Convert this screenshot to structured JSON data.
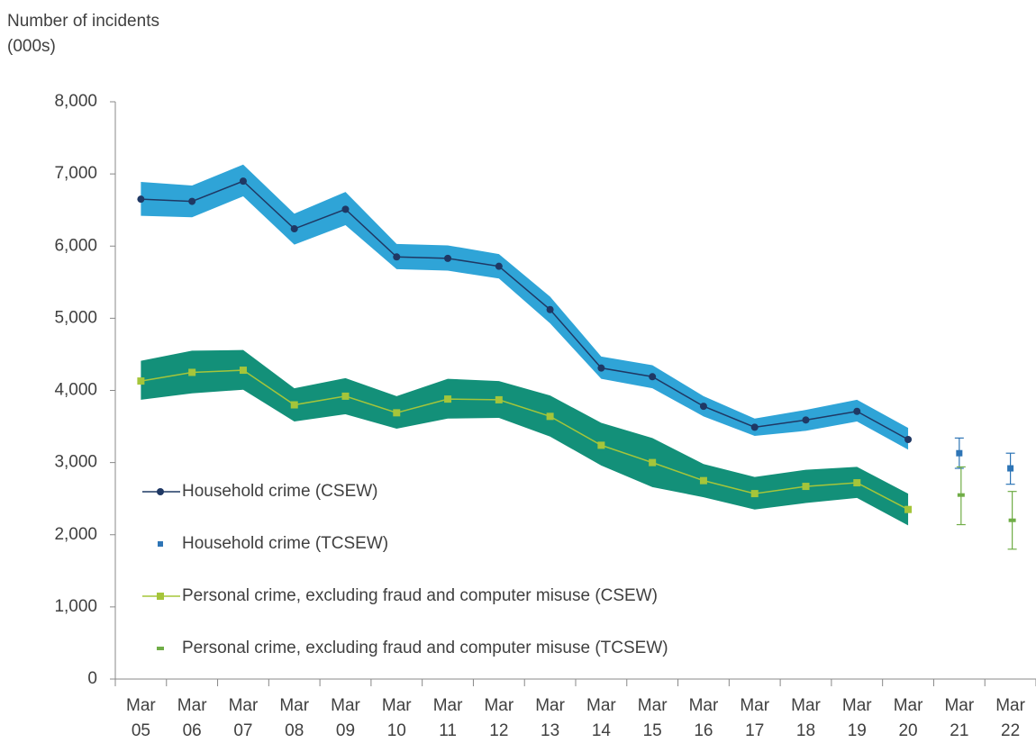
{
  "chart_data": {
    "type": "line",
    "y_label": "Number of incidents (000s)",
    "categories": [
      "Mar 05",
      "Mar 06",
      "Mar 07",
      "Mar 08",
      "Mar 09",
      "Mar 10",
      "Mar 11",
      "Mar 12",
      "Mar 13",
      "Mar 14",
      "Mar 15",
      "Mar 16",
      "Mar 17",
      "Mar 18",
      "Mar 19",
      "Mar 20",
      "Mar 21",
      "Mar 22"
    ],
    "ylim": [
      0,
      8000
    ],
    "yticks": [
      0,
      {
        "value": 1000,
        "label": "1,000"
      },
      {
        "value": 2000,
        "label": "2,000"
      },
      {
        "value": 3000,
        "label": "3,000"
      },
      {
        "value": 4000,
        "label": "4,000"
      },
      {
        "value": 5000,
        "label": "5,000"
      },
      {
        "value": 6000,
        "label": "6,000"
      },
      {
        "value": 7000,
        "label": "7,000"
      },
      {
        "value": 8000,
        "label": "8,000"
      }
    ],
    "grid": false,
    "legend": "left",
    "series": [
      {
        "name": "Household crime (CSEW)",
        "color": "#1f3864",
        "marker": "circle",
        "band_color": "#2fa4d7",
        "values": [
          6650,
          6620,
          6900,
          6240,
          6510,
          5850,
          5830,
          5720,
          5120,
          4310,
          4190,
          3780,
          3490,
          3590,
          3710,
          3320,
          null,
          null
        ],
        "upper": [
          6890,
          6840,
          7130,
          6450,
          6750,
          6030,
          6010,
          5890,
          5300,
          4470,
          4350,
          3920,
          3610,
          3730,
          3870,
          3480,
          null,
          null
        ],
        "lower": [
          6420,
          6400,
          6690,
          6020,
          6290,
          5680,
          5660,
          5550,
          4930,
          4160,
          4030,
          3640,
          3370,
          3440,
          3570,
          3180,
          null,
          null
        ]
      },
      {
        "name": "Household crime (TCSEW)",
        "color": "#2e75b6",
        "marker": "square",
        "values": [
          null,
          null,
          null,
          null,
          null,
          null,
          null,
          null,
          null,
          null,
          null,
          null,
          null,
          null,
          null,
          null,
          3130,
          2920
        ],
        "upper": [
          null,
          null,
          null,
          null,
          null,
          null,
          null,
          null,
          null,
          null,
          null,
          null,
          null,
          null,
          null,
          null,
          3340,
          3130
        ],
        "lower": [
          null,
          null,
          null,
          null,
          null,
          null,
          null,
          null,
          null,
          null,
          null,
          null,
          null,
          null,
          null,
          null,
          2920,
          2700
        ]
      },
      {
        "name": "Personal crime, excluding fraud and computer misuse (CSEW)",
        "color": "#a5c53a",
        "marker": "square",
        "band_color": "#139079",
        "values": [
          4130,
          4250,
          4280,
          3800,
          3920,
          3690,
          3880,
          3870,
          3640,
          3240,
          3000,
          2750,
          2570,
          2670,
          2720,
          2350,
          null,
          null
        ],
        "upper": [
          4410,
          4550,
          4560,
          4030,
          4170,
          3920,
          4160,
          4130,
          3930,
          3550,
          3340,
          2980,
          2800,
          2900,
          2940,
          2570,
          null,
          null
        ],
        "lower": [
          3870,
          3960,
          4010,
          3570,
          3670,
          3470,
          3610,
          3620,
          3360,
          2960,
          2660,
          2520,
          2350,
          2440,
          2510,
          2130,
          null,
          null
        ]
      },
      {
        "name": "Personal crime, excluding fraud and computer misuse (TCSEW)",
        "color": "#70ad47",
        "marker": "dash",
        "values": [
          null,
          null,
          null,
          null,
          null,
          null,
          null,
          null,
          null,
          null,
          null,
          null,
          null,
          null,
          null,
          null,
          2550,
          2200
        ],
        "upper": [
          null,
          null,
          null,
          null,
          null,
          null,
          null,
          null,
          null,
          null,
          null,
          null,
          null,
          null,
          null,
          null,
          2940,
          2600
        ],
        "lower": [
          null,
          null,
          null,
          null,
          null,
          null,
          null,
          null,
          null,
          null,
          null,
          null,
          null,
          null,
          null,
          null,
          2140,
          1800
        ]
      }
    ]
  }
}
